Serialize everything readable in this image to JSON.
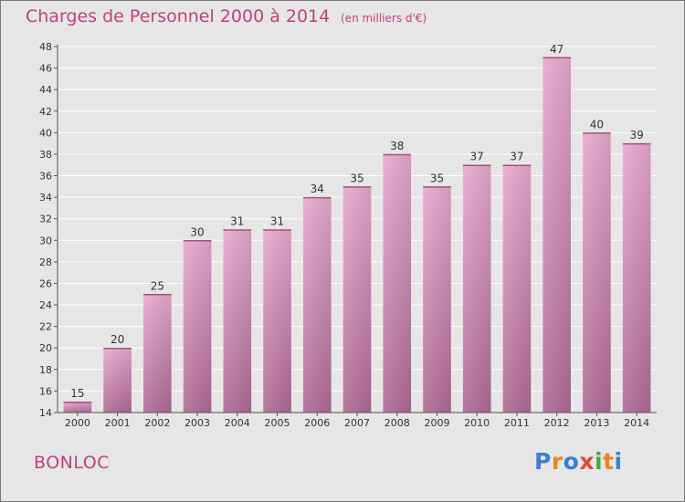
{
  "header": {
    "title": "Charges de Personnel 2000 à 2014",
    "subtitle": "(en milliers d'€)"
  },
  "footer": {
    "city": "BONLOC",
    "logo": "Proxiti"
  },
  "colors": {
    "title": "#c04080",
    "background": "#e6e6e6",
    "bar_top": "#e8a9cf",
    "bar_bottom": "#b06a96",
    "grid": "#ffffff"
  },
  "chart_data": {
    "type": "bar",
    "title": "Charges de Personnel 2000 à 2014",
    "subtitle": "(en milliers d'€)",
    "xlabel": "",
    "ylabel": "",
    "categories": [
      "2000",
      "2001",
      "2002",
      "2003",
      "2004",
      "2005",
      "2006",
      "2007",
      "2008",
      "2009",
      "2010",
      "2011",
      "2012",
      "2013",
      "2014"
    ],
    "values": [
      15,
      20,
      25,
      30,
      31,
      31,
      34,
      35,
      38,
      35,
      37,
      37,
      47,
      40,
      39
    ],
    "ylim": [
      14,
      48
    ],
    "yticks": [
      14,
      16,
      18,
      20,
      22,
      24,
      26,
      28,
      30,
      32,
      34,
      36,
      38,
      40,
      42,
      44,
      46,
      48
    ],
    "grid": true,
    "data_labels": true
  }
}
